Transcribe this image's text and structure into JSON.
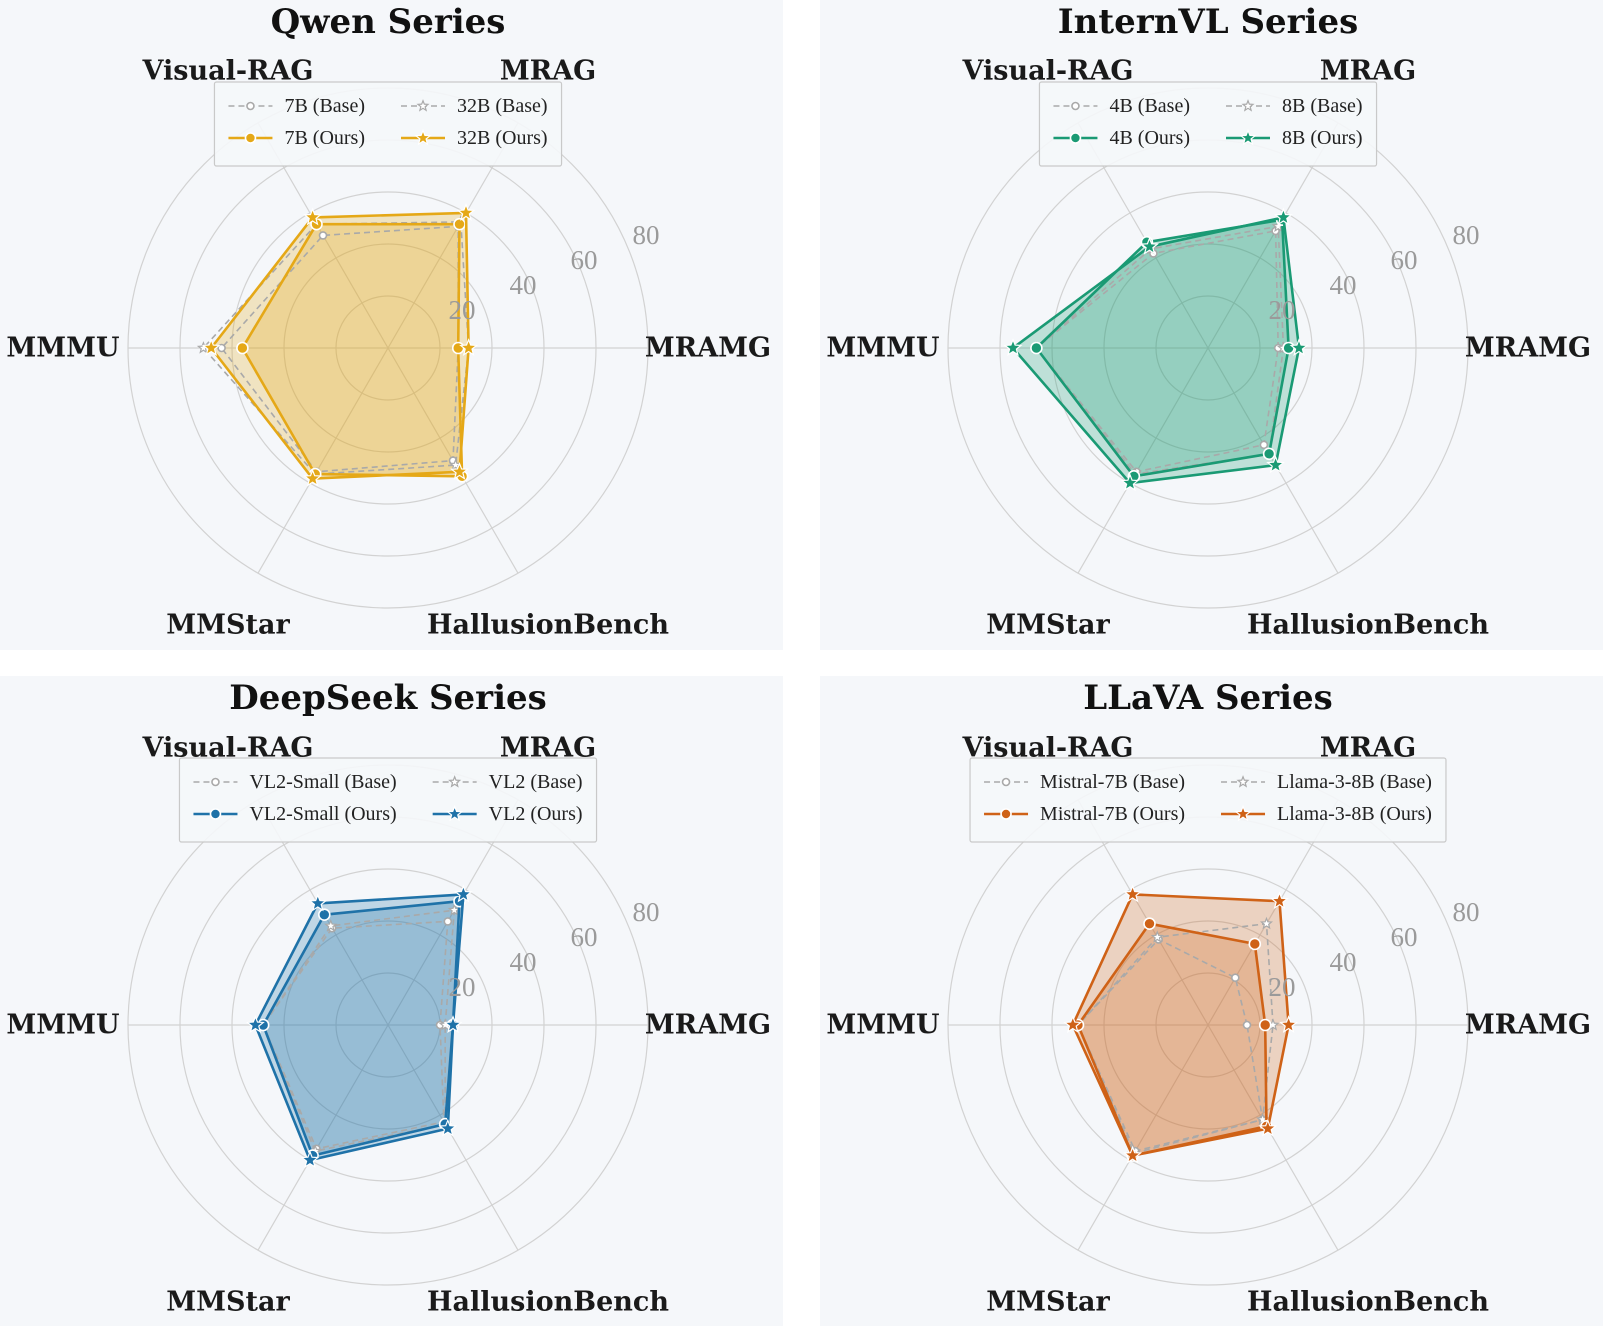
{
  "chart_data": [
    {
      "type": "radar",
      "title": "Qwen Series",
      "axes": [
        "MRAMG",
        "MRAG",
        "Visual-RAG",
        "MMMU",
        "MMStar",
        "HallusionBench"
      ],
      "rlim": [
        0,
        100
      ],
      "rticks": [
        20,
        40,
        60,
        80
      ],
      "legend_loc": "top-center",
      "color": "#e5a817",
      "series": [
        {
          "name": "7B (Base)",
          "marker": "circle",
          "style": "base",
          "values": [
            27,
            54,
            50,
            64,
            55,
            50
          ]
        },
        {
          "name": "32B (Base)",
          "marker": "star",
          "style": "base",
          "values": [
            31,
            56,
            55,
            71,
            56,
            52
          ]
        },
        {
          "name": "7B (Ours)",
          "marker": "circle",
          "style": "ours",
          "values": [
            27,
            55,
            55,
            56,
            56,
            57
          ]
        },
        {
          "name": "32B (Ours)",
          "marker": "star",
          "style": "ours",
          "values": [
            31,
            60,
            58,
            68,
            58,
            55
          ]
        }
      ]
    },
    {
      "type": "radar",
      "title": "InternVL Series",
      "axes": [
        "MRAMG",
        "MRAG",
        "Visual-RAG",
        "MMMU",
        "MMStar",
        "HallusionBench"
      ],
      "rlim": [
        0,
        100
      ],
      "rticks": [
        20,
        40,
        60,
        80
      ],
      "legend_loc": "top-center",
      "color": "#1a9a74",
      "series": [
        {
          "name": "4B (Base)",
          "marker": "circle",
          "style": "base",
          "values": [
            27,
            52,
            42,
            66,
            55,
            43
          ]
        },
        {
          "name": "8B (Base)",
          "marker": "star",
          "style": "base",
          "values": [
            29,
            54,
            44,
            66,
            56,
            47
          ]
        },
        {
          "name": "4B (Ours)",
          "marker": "circle",
          "style": "ours",
          "values": [
            31,
            57,
            47,
            66,
            57,
            47
          ]
        },
        {
          "name": "8B (Ours)",
          "marker": "star",
          "style": "ours",
          "values": [
            35,
            58,
            45,
            75,
            60,
            52
          ]
        }
      ]
    },
    {
      "type": "radar",
      "title": "DeepSeek Series",
      "axes": [
        "MRAMG",
        "MRAG",
        "Visual-RAG",
        "MMMU",
        "MMStar",
        "HallusionBench"
      ],
      "rlim": [
        0,
        100
      ],
      "rticks": [
        20,
        40,
        60,
        80
      ],
      "legend_loc": "top-center",
      "color": "#1f72a8",
      "series": [
        {
          "name": "VL2-Small (Base)",
          "marker": "circle",
          "style": "base",
          "values": [
            20,
            46,
            43,
            48,
            55,
            43
          ]
        },
        {
          "name": "VL2 (Base)",
          "marker": "star",
          "style": "base",
          "values": [
            22,
            51,
            44,
            48,
            56,
            44
          ]
        },
        {
          "name": "VL2-Small (Ours)",
          "marker": "circle",
          "style": "ours",
          "values": [
            25,
            55,
            49,
            48,
            58,
            44
          ]
        },
        {
          "name": "VL2 (Ours)",
          "marker": "star",
          "style": "ours",
          "values": [
            25,
            58,
            54,
            51,
            60,
            46
          ]
        }
      ]
    },
    {
      "type": "radar",
      "title": "LLaVA Series",
      "axes": [
        "MRAMG",
        "MRAG",
        "Visual-RAG",
        "MMMU",
        "MMStar",
        "HallusionBench"
      ],
      "rlim": [
        0,
        100
      ],
      "rticks": [
        20,
        40,
        60,
        80
      ],
      "legend_loc": "top-center",
      "color": "#cf6217",
      "series": [
        {
          "name": "Mistral-7B (Base)",
          "marker": "circle",
          "style": "base",
          "values": [
            15,
            21,
            38,
            50,
            56,
            42
          ]
        },
        {
          "name": "Llama-3-8B (Base)",
          "marker": "star",
          "style": "base",
          "values": [
            25,
            45,
            39,
            50,
            57,
            42
          ]
        },
        {
          "name": "Mistral-7B (Ours)",
          "marker": "circle",
          "style": "ours",
          "values": [
            22,
            36,
            45,
            50,
            58,
            45
          ]
        },
        {
          "name": "Llama-3-8B (Ours)",
          "marker": "star",
          "style": "ours",
          "values": [
            31,
            55,
            58,
            52,
            58,
            46
          ]
        }
      ]
    }
  ]
}
